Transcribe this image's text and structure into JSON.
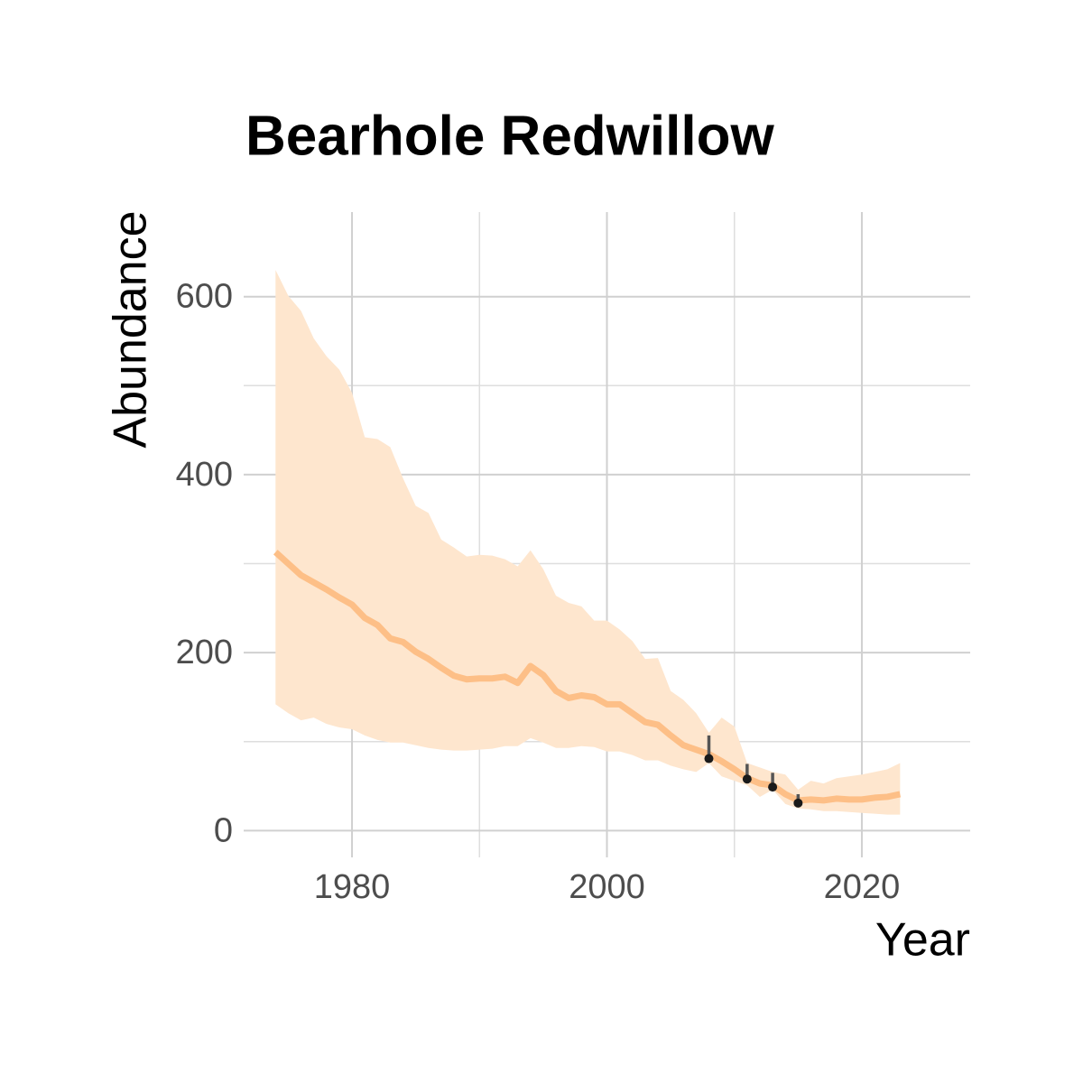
{
  "chart_data": {
    "type": "line",
    "title": "Bearhole Redwillow",
    "x_label": "Year",
    "y_label": "Abundance",
    "xlim": [
      1971.5,
      2028.5
    ],
    "ylim": [
      -30,
      695
    ],
    "xticks": [
      1980,
      2000,
      2020
    ],
    "yticks": [
      0,
      200,
      400,
      600
    ],
    "minor_xticks": [
      1990,
      2010
    ],
    "minor_yticks": [
      100,
      300,
      500
    ],
    "grid": true,
    "x": [
      1974,
      1975,
      1976,
      1977,
      1978,
      1979,
      1980,
      1981,
      1982,
      1983,
      1984,
      1985,
      1986,
      1987,
      1988,
      1989,
      1990,
      1991,
      1992,
      1993,
      1994,
      1995,
      1996,
      1997,
      1998,
      1999,
      2000,
      2001,
      2002,
      2003,
      2004,
      2005,
      2006,
      2007,
      2008,
      2009,
      2010,
      2011,
      2012,
      2013,
      2014,
      2015,
      2016,
      2017,
      2018,
      2019,
      2020,
      2021,
      2022,
      2023
    ],
    "series": [
      {
        "color": "#fdbf87",
        "values": [
          313,
          300,
          287,
          279,
          271,
          262,
          254,
          239,
          231,
          216,
          212,
          201,
          193,
          183,
          174,
          170,
          171,
          171,
          173,
          166,
          185,
          175,
          157,
          149,
          152,
          150,
          142,
          142,
          132,
          122,
          119,
          107,
          96,
          91,
          86,
          78,
          69,
          59,
          53,
          51,
          41,
          34,
          35,
          34,
          36,
          35,
          35,
          37,
          38,
          41
        ]
      }
    ],
    "band": {
      "color": "#fee6ce",
      "upper": [
        630,
        601,
        584,
        553,
        533,
        518,
        492,
        442,
        440,
        431,
        396,
        365,
        357,
        327,
        318,
        308,
        310,
        309,
        305,
        297,
        315,
        294,
        264,
        256,
        252,
        236,
        236,
        226,
        213,
        193,
        194,
        157,
        147,
        132,
        110,
        127,
        117,
        76,
        71,
        66,
        63,
        46,
        56,
        53,
        59,
        61,
        63,
        66,
        69,
        76
      ],
      "lower": [
        142,
        132,
        124,
        127,
        120,
        116,
        114,
        107,
        102,
        99,
        99,
        96,
        93,
        91,
        90,
        90,
        91,
        92,
        95,
        95,
        104,
        99,
        93,
        93,
        95,
        94,
        89,
        89,
        85,
        79,
        79,
        73,
        69,
        66,
        76,
        61,
        56,
        51,
        38,
        46,
        30,
        25,
        24,
        22,
        22,
        21,
        20,
        19,
        18,
        18
      ]
    },
    "observations": {
      "color": "#1a1a1a",
      "error_color": "#555555",
      "x": [
        2008,
        2011,
        2013,
        2015
      ],
      "values": [
        81,
        58,
        49,
        31
      ],
      "upper": [
        107,
        75,
        65,
        41
      ]
    }
  }
}
